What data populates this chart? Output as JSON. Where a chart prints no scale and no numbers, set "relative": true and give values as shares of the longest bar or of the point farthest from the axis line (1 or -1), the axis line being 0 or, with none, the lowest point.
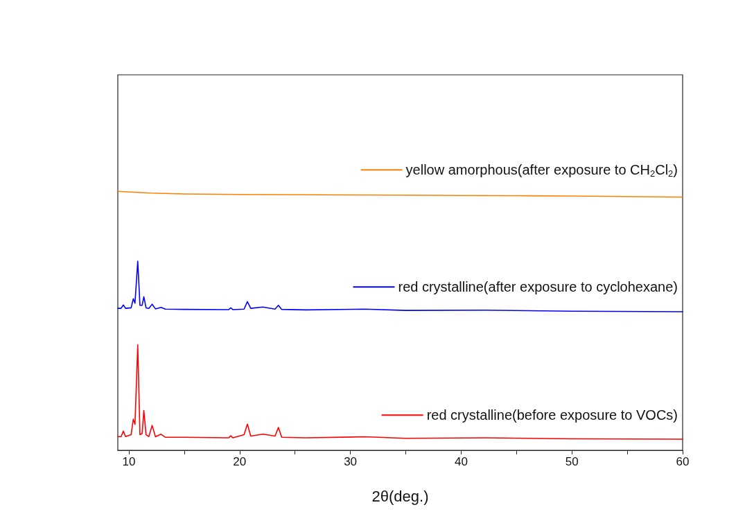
{
  "chart_data": {
    "type": "line",
    "xlabel": "2θ(deg.)",
    "relative": true,
    "xlim": [
      9,
      60
    ],
    "xticks": [
      10,
      {
        "value": 15,
        "label": null
      },
      20,
      {
        "value": 25,
        "label": null
      },
      30,
      {
        "value": 35,
        "label": null
      },
      40,
      {
        "value": 45,
        "label": null
      },
      50,
      {
        "value": 55,
        "label": null
      },
      60
    ],
    "grid": false,
    "legend": "right",
    "marker": "none",
    "line_style": "solid",
    "series": [
      {
        "name": "yellow amorphous(after exposure to CH$_{2}$Cl$_{2}$)",
        "color": "#ff8000",
        "x": [
          9,
          12,
          15,
          20,
          25,
          30,
          35,
          40,
          45,
          50,
          55,
          60
        ],
        "values": [
          1,
          0.993,
          0.99,
          0.988,
          0.987,
          0.986,
          0.985,
          0.984,
          0.983,
          0.982,
          0.98,
          0.978
        ]
      },
      {
        "name": "red crystalline(after exposure to cyclohexane)",
        "color": "#0000ff",
        "x": [
          9,
          9.3,
          9.5,
          9.7,
          10.2,
          10.4,
          10.55,
          10.8,
          11.0,
          11.2,
          11.35,
          11.55,
          11.8,
          12.1,
          12.4,
          12.9,
          13.3,
          15,
          19,
          19.2,
          19.4,
          20.4,
          20.7,
          21.0,
          22.1,
          23.2,
          23.5,
          23.8,
          26,
          31.3,
          35,
          42.2,
          50,
          60
        ],
        "values": [
          0.548,
          0.548,
          0.561,
          0.548,
          0.55,
          0.585,
          0.568,
          0.73,
          0.56,
          0.56,
          0.593,
          0.55,
          0.548,
          0.564,
          0.546,
          0.552,
          0.545,
          0.544,
          0.543,
          0.55,
          0.543,
          0.545,
          0.574,
          0.548,
          0.553,
          0.545,
          0.56,
          0.544,
          0.542,
          0.545,
          0.54,
          0.541,
          0.537,
          0.535
        ]
      },
      {
        "name": "red crystalline(before exposure to VOCs)",
        "color": "#ff0000",
        "x": [
          9,
          9.3,
          9.5,
          9.7,
          10.2,
          10.4,
          10.55,
          10.8,
          11.0,
          11.2,
          11.35,
          11.55,
          11.8,
          12.1,
          12.4,
          12.9,
          13.3,
          15,
          19,
          19.2,
          19.4,
          20.4,
          20.7,
          21.0,
          22.1,
          23.2,
          23.5,
          23.8,
          26,
          31.3,
          35,
          42.2,
          50,
          60
        ],
        "values": [
          0.053,
          0.053,
          0.074,
          0.053,
          0.06,
          0.12,
          0.1,
          0.407,
          0.06,
          0.065,
          0.154,
          0.06,
          0.053,
          0.096,
          0.052,
          0.062,
          0.05,
          0.05,
          0.048,
          0.056,
          0.048,
          0.06,
          0.101,
          0.055,
          0.062,
          0.055,
          0.088,
          0.05,
          0.048,
          0.052,
          0.046,
          0.048,
          0.044,
          0.043
        ]
      }
    ]
  }
}
